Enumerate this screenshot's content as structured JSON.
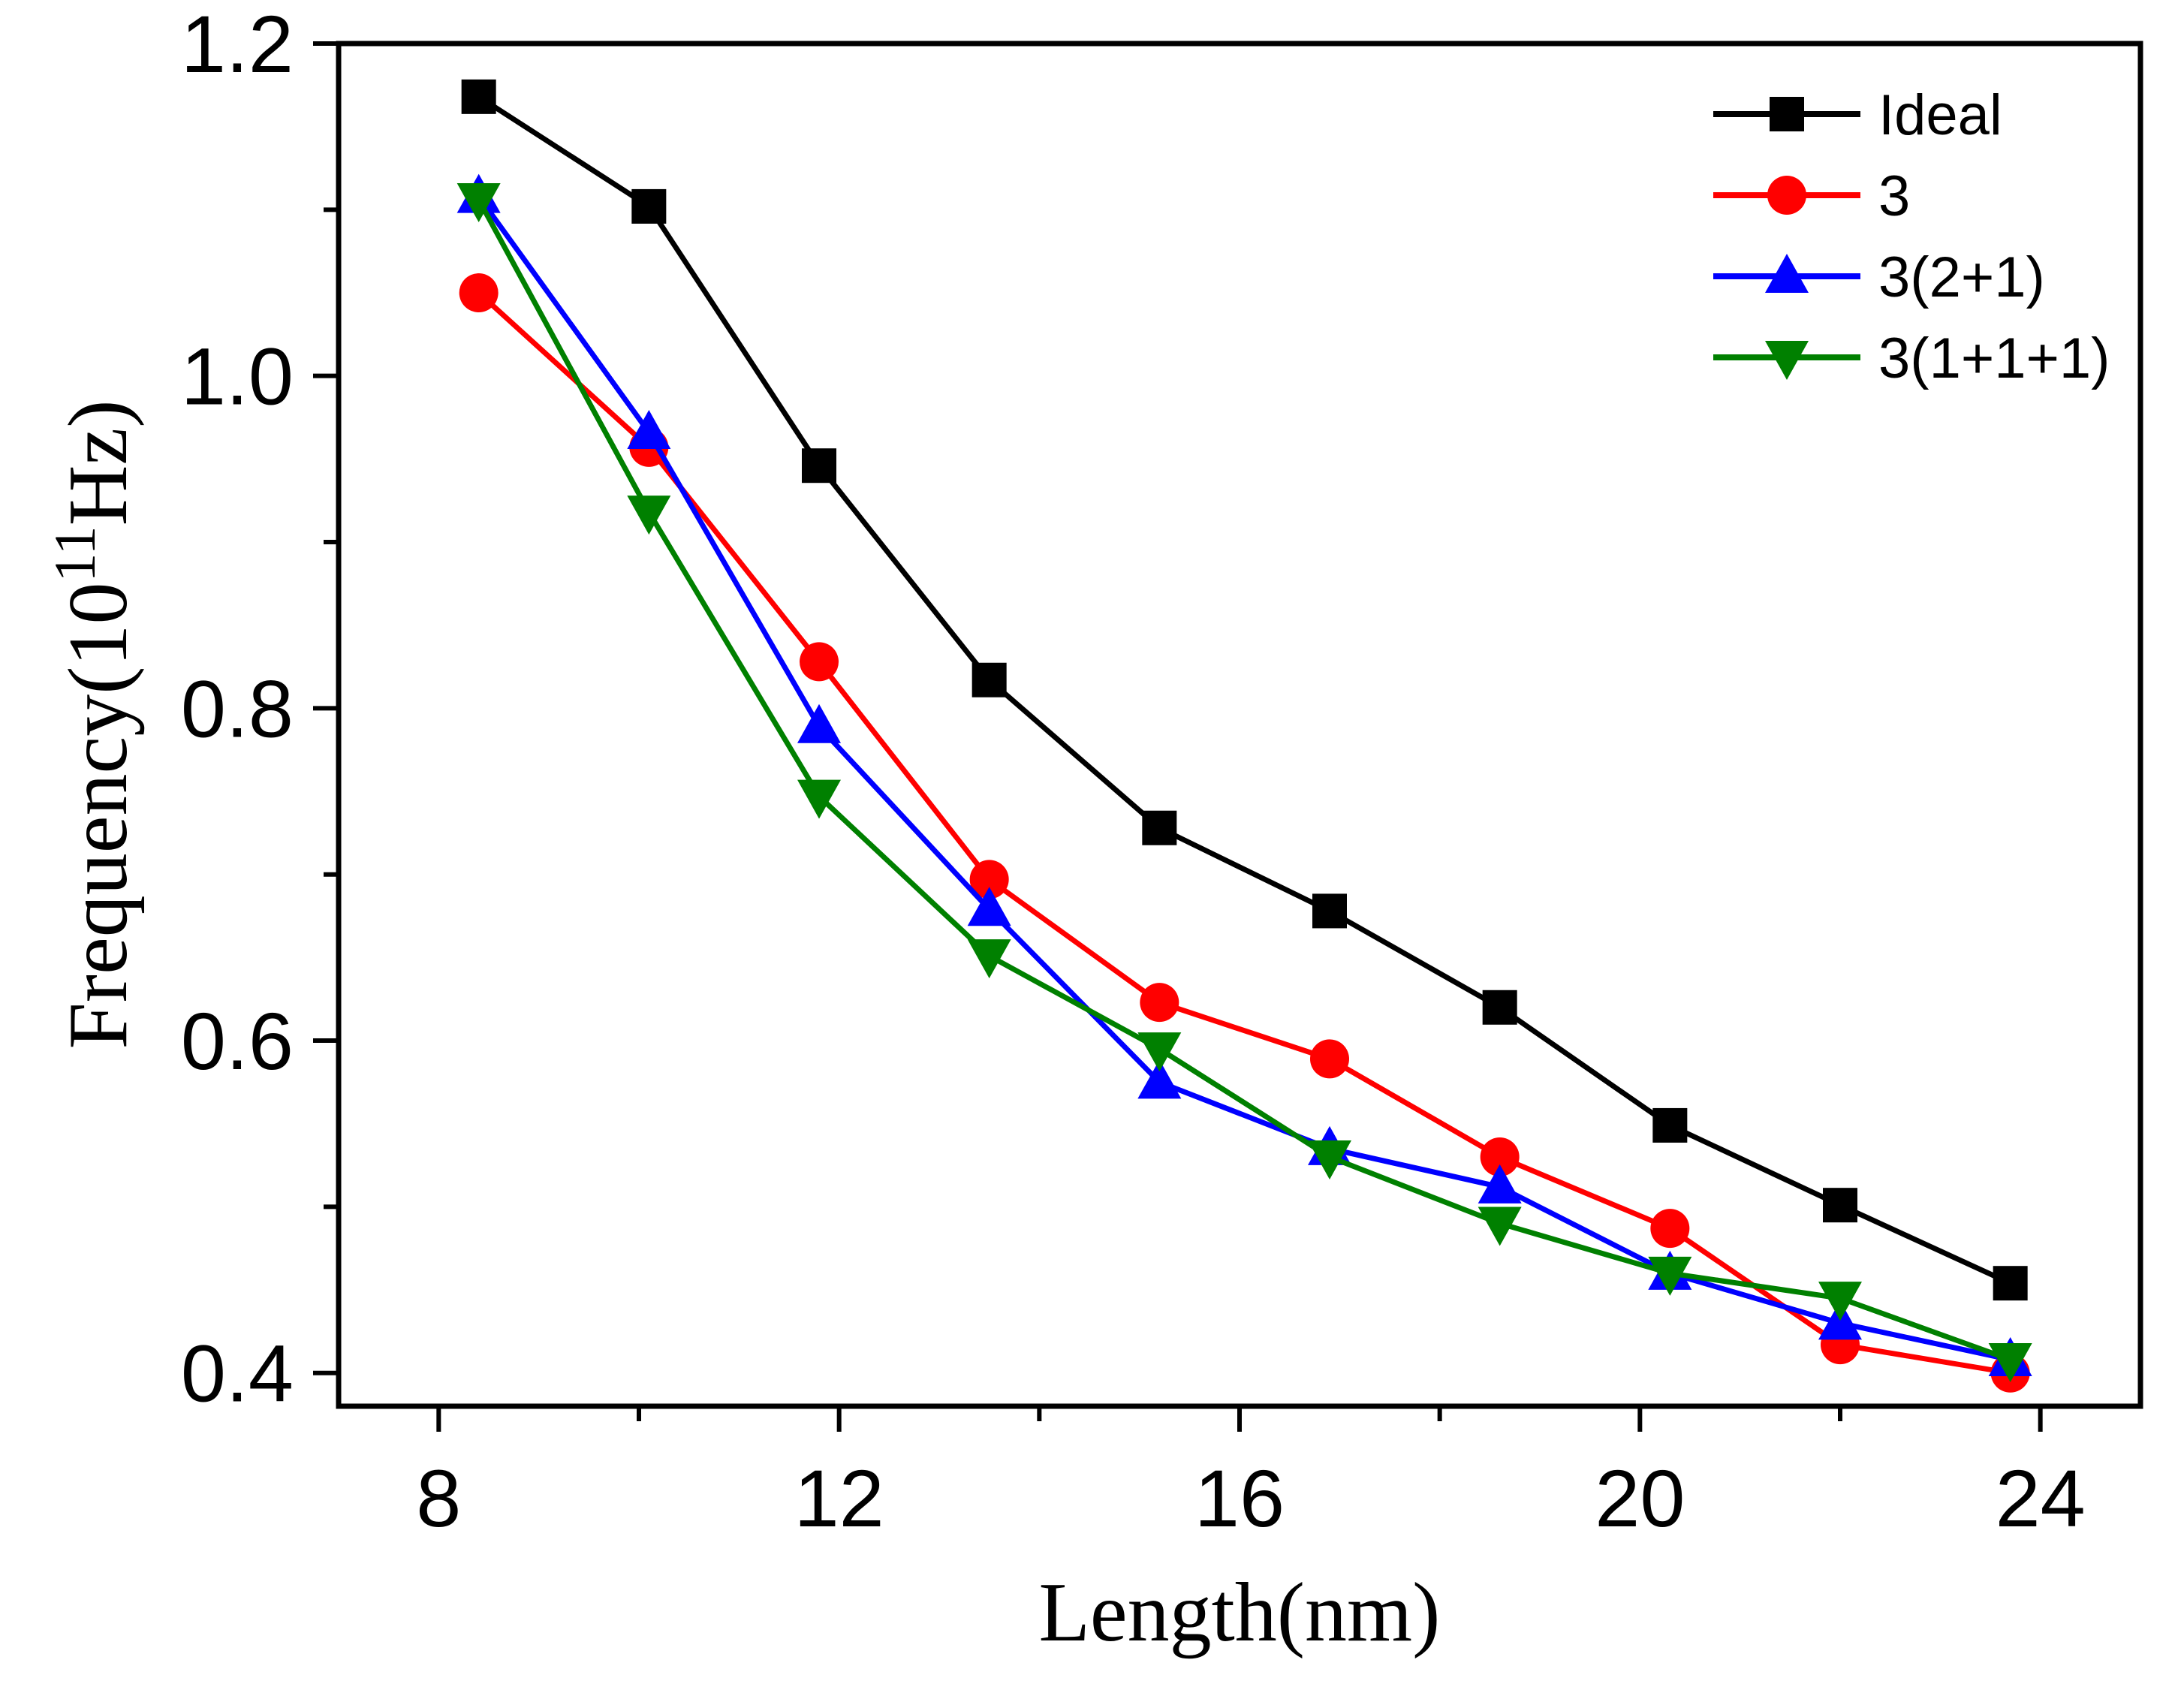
{
  "chart_data": {
    "type": "line",
    "title": "",
    "xlabel": "Length(nm)",
    "ylabel_main": "Frequency(10",
    "ylabel_exponent": "11",
    "ylabel_unit": "Hz)",
    "xlim": [
      7,
      25
    ],
    "ylim": [
      0.38,
      1.2
    ],
    "xticks": [
      8,
      12,
      16,
      20,
      24
    ],
    "xtick_labels": [
      "8",
      "12",
      "16",
      "20",
      "24"
    ],
    "xminor_ticks": [
      10,
      14,
      18,
      22
    ],
    "yticks": [
      0.4,
      0.6,
      0.8,
      1.0,
      1.2
    ],
    "ytick_labels": [
      "0.4",
      "0.6",
      "0.8",
      "1.0",
      "1.2"
    ],
    "yminor_ticks": [
      0.5,
      0.7,
      0.9,
      1.1
    ],
    "grid": false,
    "legend_position": "top-right",
    "series": [
      {
        "name": "Ideal",
        "color": "#000000",
        "marker": "square",
        "x": [
          8.4,
          10.1,
          11.8,
          13.5,
          15.2,
          16.9,
          18.6,
          20.3,
          22.0,
          23.7
        ],
        "y": [
          1.168,
          1.102,
          0.946,
          0.817,
          0.728,
          0.678,
          0.62,
          0.549,
          0.501,
          0.454
        ]
      },
      {
        "name": "3",
        "color": "#ff0000",
        "marker": "circle",
        "x": [
          8.4,
          10.1,
          11.8,
          13.5,
          15.2,
          16.9,
          18.6,
          20.3,
          22.0,
          23.7
        ],
        "y": [
          1.05,
          0.957,
          0.828,
          0.697,
          0.623,
          0.589,
          0.53,
          0.487,
          0.417,
          0.4
        ]
      },
      {
        "name": "3(2+1)",
        "color": "#0000ff",
        "marker": "triangle-up",
        "x": [
          8.4,
          10.1,
          11.8,
          13.5,
          15.2,
          16.9,
          18.6,
          20.3,
          22.0,
          23.7
        ],
        "y": [
          1.108,
          0.966,
          0.789,
          0.679,
          0.575,
          0.535,
          0.512,
          0.46,
          0.43,
          0.408
        ]
      },
      {
        "name": "3(1+1+1)",
        "color": "#008000",
        "marker": "triangle-down",
        "x": [
          8.4,
          10.1,
          11.8,
          13.5,
          15.2,
          16.9,
          18.6,
          20.3,
          22.0,
          23.7
        ],
        "y": [
          1.106,
          0.918,
          0.747,
          0.651,
          0.595,
          0.53,
          0.49,
          0.46,
          0.445,
          0.408
        ]
      }
    ]
  }
}
